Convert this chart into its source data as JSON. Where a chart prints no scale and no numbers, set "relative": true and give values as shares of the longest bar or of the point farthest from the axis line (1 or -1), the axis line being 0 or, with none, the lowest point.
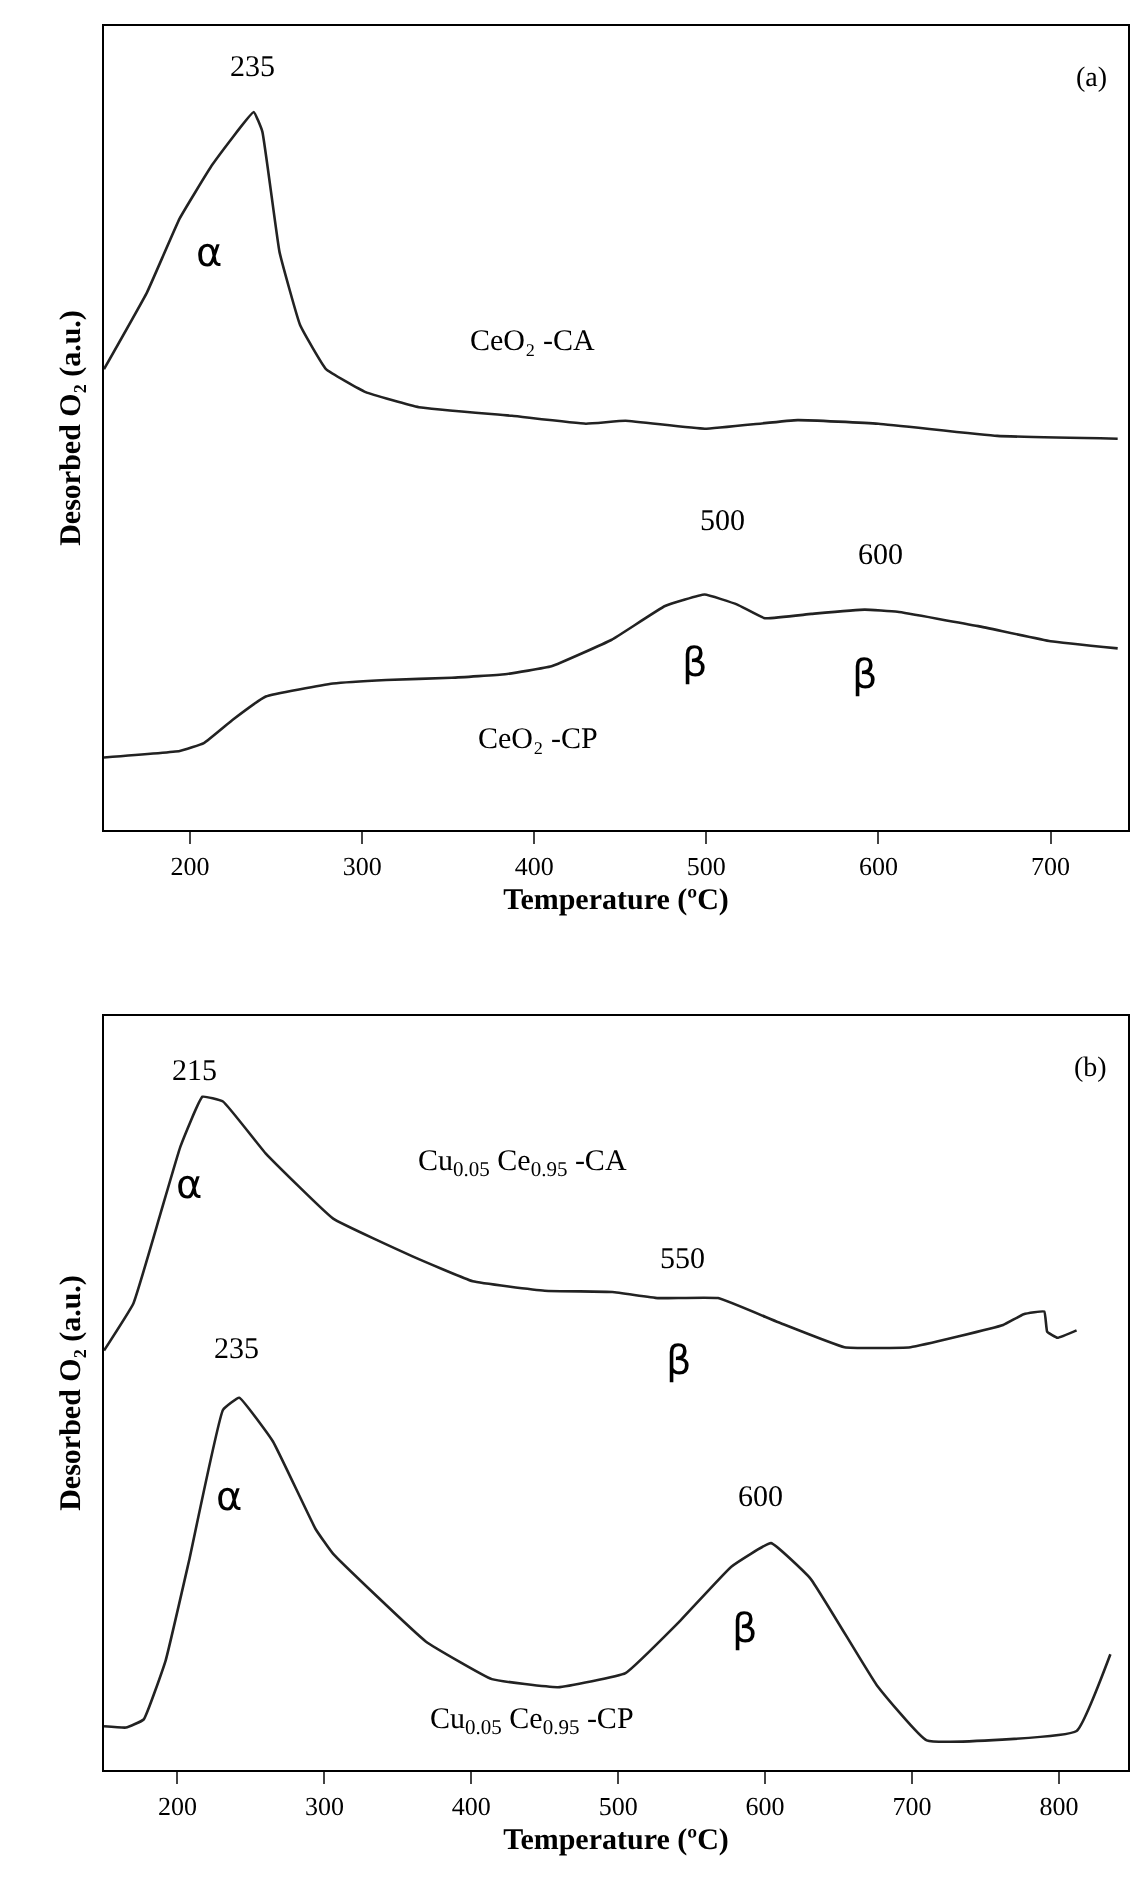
{
  "chart_data": [
    {
      "type": "line",
      "relative": true,
      "xlabel": "Temperature (ºC)",
      "ylabel": "Desorbed O₂ (a.u.)",
      "xlim": [
        150,
        745
      ],
      "xticks": [
        200,
        300,
        400,
        500,
        600,
        700
      ],
      "series": [
        {
          "color": "#222222",
          "x": [
            150,
            175,
            194,
            213,
            237,
            242,
            252,
            264,
            279,
            302,
            333,
            387,
            430,
            453,
            499,
            553,
            600,
            669,
            739
          ],
          "values": [
            0.642,
            0.749,
            0.852,
            0.927,
            1.0,
            0.973,
            0.805,
            0.703,
            0.642,
            0.61,
            0.589,
            0.577,
            0.566,
            0.57,
            0.559,
            0.571,
            0.566,
            0.549,
            0.545
          ]
        },
        {
          "color": "#222222",
          "x": [
            150,
            194,
            208,
            225,
            244,
            283,
            314,
            352,
            383,
            410,
            445,
            476,
            499,
            518,
            534,
            561,
            592,
            611,
            658,
            700,
            739
          ],
          "values": [
            0.101,
            0.11,
            0.121,
            0.154,
            0.186,
            0.204,
            0.209,
            0.212,
            0.217,
            0.228,
            0.265,
            0.312,
            0.328,
            0.314,
            0.295,
            0.301,
            0.307,
            0.304,
            0.284,
            0.263,
            0.253
          ]
        }
      ],
      "annotations": [
        "(a)",
        {
          "text": "235",
          "x": 237,
          "y": 1.0
        },
        {
          "text": "α",
          "x": 213,
          "y": 0.927
        },
        {
          "text": "CeO₂ -CA",
          "x": 387,
          "y": 0.577
        },
        {
          "text": "500",
          "x": 499,
          "y": 0.328
        },
        {
          "text": "600",
          "x": 592,
          "y": 0.307
        },
        {
          "text": "β",
          "x": 499,
          "y": 0.328
        },
        {
          "text": "β",
          "x": 592,
          "y": 0.307
        },
        {
          "text": "CeO₂ -CP",
          "x": 383,
          "y": 0.217
        }
      ]
    },
    {
      "type": "line",
      "relative": true,
      "xlabel": "Temperature (ºC)",
      "ylabel": "Desorbed O₂ (a.u.)",
      "xlim": [
        150,
        847
      ],
      "xticks": [
        200,
        300,
        400,
        500,
        600,
        700,
        800
      ],
      "series": [
        {
          "color": "#222222",
          "x": [
            150,
            170,
            188,
            202,
            217,
            231,
            260,
            306,
            360,
            401,
            450,
            496,
            527,
            568,
            609,
            654,
            699,
            762,
            776,
            790,
            792,
            799,
            812
          ],
          "values": [
            0.623,
            0.693,
            0.823,
            0.926,
            1.0,
            0.993,
            0.916,
            0.819,
            0.763,
            0.726,
            0.712,
            0.71,
            0.701,
            0.701,
            0.665,
            0.628,
            0.628,
            0.661,
            0.677,
            0.681,
            0.651,
            0.642,
            0.653
          ]
        },
        {
          "color": "#222222",
          "x": [
            150,
            165,
            177,
            192,
            208,
            231,
            242,
            265,
            294,
            306,
            369,
            414,
            459,
            505,
            541,
            577,
            604,
            631,
            676,
            710,
            812,
            835
          ],
          "values": [
            0.065,
            0.063,
            0.075,
            0.163,
            0.312,
            0.535,
            0.553,
            0.488,
            0.358,
            0.321,
            0.191,
            0.135,
            0.123,
            0.144,
            0.219,
            0.302,
            0.337,
            0.284,
            0.126,
            0.044,
            0.058,
            0.172
          ]
        }
      ],
      "annotations": [
        "(b)",
        {
          "text": "215",
          "x": 217,
          "y": 1.0
        },
        {
          "text": "α",
          "x": 202,
          "y": 0.926
        },
        "Cu$_{0.05}$ Ce$_{0.95}$ -CA",
        {
          "text": "550",
          "x": 568,
          "y": 0.701
        },
        {
          "text": "β",
          "x": 568,
          "y": 0.701
        },
        {
          "text": "235",
          "x": 242,
          "y": 0.553
        },
        {
          "text": "α",
          "x": 231,
          "y": 0.535
        },
        {
          "text": "600",
          "x": 604,
          "y": 0.337
        },
        {
          "text": "β",
          "x": 604,
          "y": 0.337
        },
        {
          "text": "Cu$_{0.05}$ Ce$_{0.95}$ -CP",
          "x": 459,
          "y": 0.123
        }
      ]
    }
  ]
}
